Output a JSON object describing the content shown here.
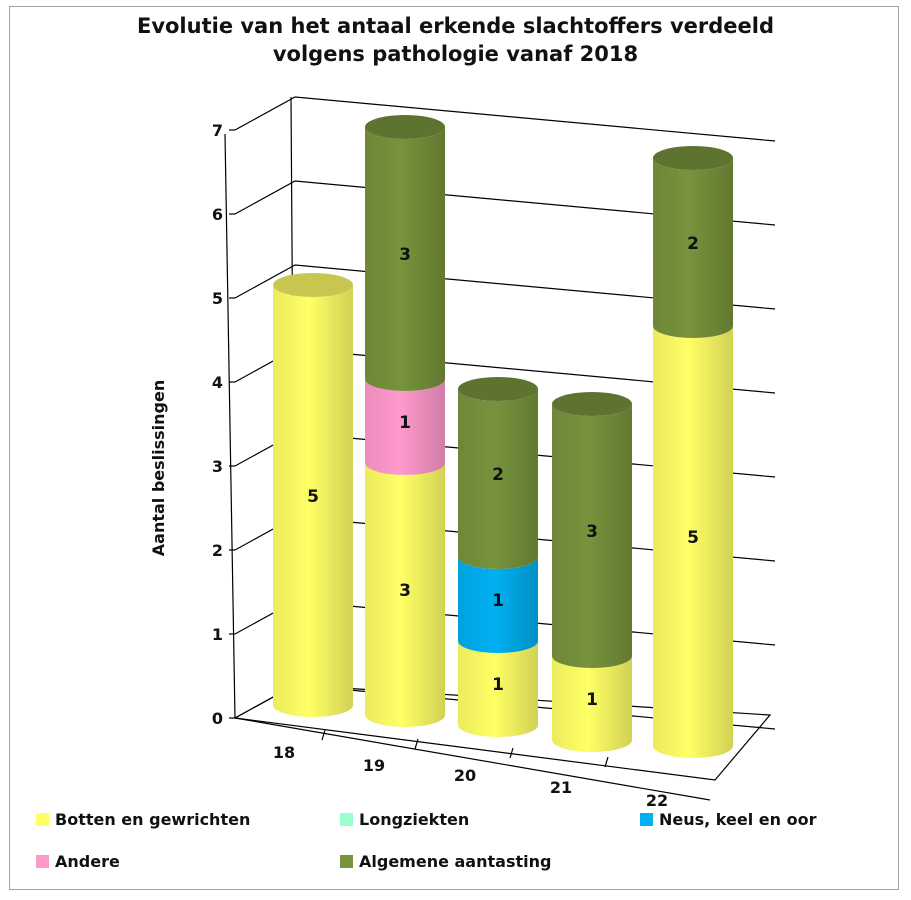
{
  "chart_data": {
    "type": "bar",
    "subtype": "stacked-3d-cylinder",
    "title_lines": [
      "Evolutie van het antaal erkende slachtoffers verdeeld",
      "volgens pathologie vanaf 2018"
    ],
    "xlabel": "",
    "ylabel": "Aantal beslissingen",
    "categories": [
      "18",
      "19",
      "20",
      "21",
      "22"
    ],
    "yticks": [
      "0",
      "1",
      "2",
      "3",
      "4",
      "5",
      "6",
      "7"
    ],
    "ylim": [
      0,
      7
    ],
    "grid": true,
    "legend_position": "bottom",
    "series": [
      {
        "name": "Botten en gewrichten",
        "color": "#ffff66",
        "values": [
          5,
          3,
          1,
          1,
          5
        ]
      },
      {
        "name": "Longziekten",
        "color": "#99ffcc",
        "values": [
          0,
          0,
          0,
          0,
          0
        ]
      },
      {
        "name": "Neus, keel en oor",
        "color": "#00b0f0",
        "values": [
          0,
          0,
          1,
          0,
          0
        ]
      },
      {
        "name": "Andere",
        "color": "#ff99cc",
        "values": [
          0,
          1,
          0,
          0,
          0
        ]
      },
      {
        "name": "Algemene aantasting",
        "color": "#77933c",
        "values": [
          0,
          3,
          2,
          3,
          2
        ]
      }
    ]
  }
}
